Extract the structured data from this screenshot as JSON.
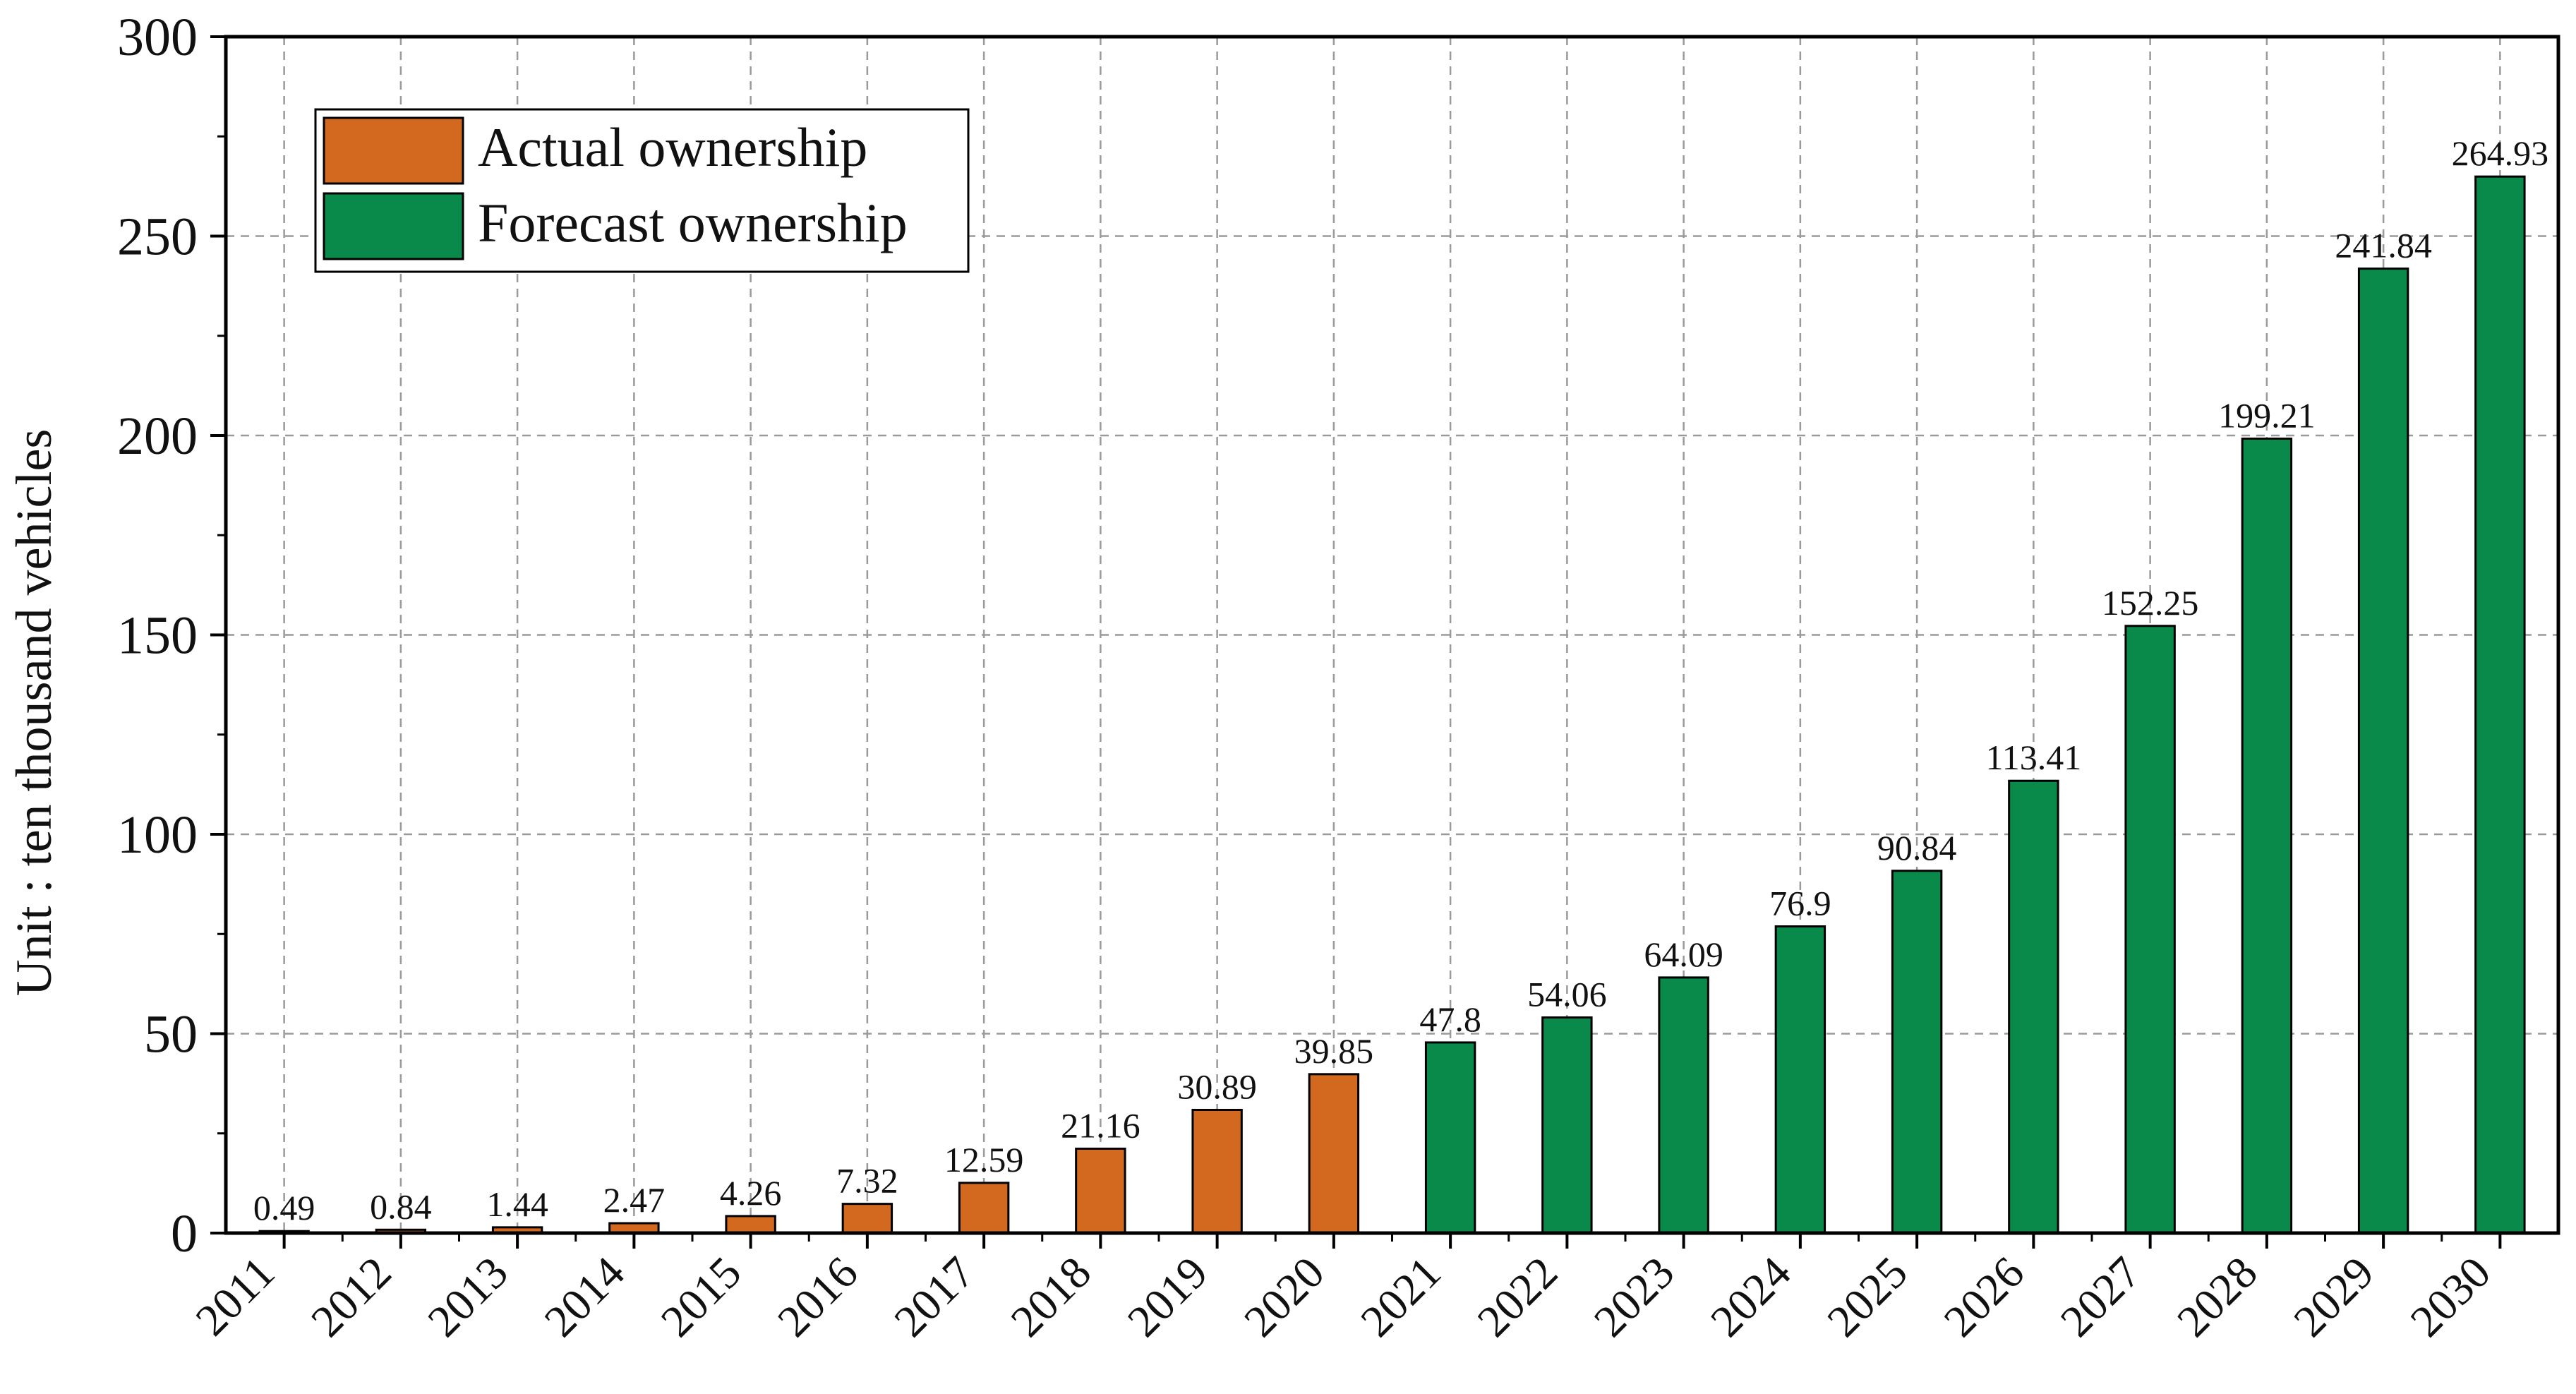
{
  "chart_data": {
    "type": "bar",
    "title": "",
    "xlabel": "",
    "ylabel": "Unit : ten thousand vehicles",
    "ylim": [
      0,
      300
    ],
    "yticks": [
      0,
      50,
      100,
      150,
      200,
      250,
      300
    ],
    "grid": true,
    "legend_position": "top-left",
    "categories": [
      "2011",
      "2012",
      "2013",
      "2014",
      "2015",
      "2016",
      "2017",
      "2018",
      "2019",
      "2020",
      "2021",
      "2022",
      "2023",
      "2024",
      "2025",
      "2026",
      "2027",
      "2028",
      "2029",
      "2030"
    ],
    "values": [
      0.49,
      0.84,
      1.44,
      2.47,
      4.26,
      7.32,
      12.59,
      21.16,
      30.89,
      39.85,
      47.8,
      54.06,
      64.09,
      76.9,
      90.84,
      113.41,
      152.25,
      199.21,
      241.84,
      264.93
    ],
    "value_labels": [
      "0.49",
      "0.84",
      "1.44",
      "2.47",
      "4.26",
      "7.32",
      "12.59",
      "21.16",
      "30.89",
      "39.85",
      "47.8",
      "54.06",
      "64.09",
      "76.9",
      "90.84",
      "113.41",
      "152.25",
      "199.21",
      "241.84",
      "264.93"
    ],
    "series_of_category": [
      "actual",
      "actual",
      "actual",
      "actual",
      "actual",
      "actual",
      "actual",
      "actual",
      "actual",
      "actual",
      "forecast",
      "forecast",
      "forecast",
      "forecast",
      "forecast",
      "forecast",
      "forecast",
      "forecast",
      "forecast",
      "forecast"
    ],
    "series": [
      {
        "key": "actual",
        "name": "Actual ownership",
        "color": "#D2691E"
      },
      {
        "key": "forecast",
        "name": "Forecast ownership",
        "color": "#0A8A4A"
      }
    ]
  }
}
